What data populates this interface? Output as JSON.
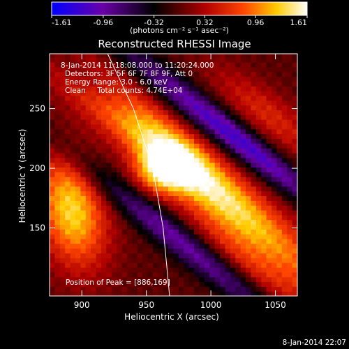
{
  "chart_data": {
    "type": "heatmap",
    "title": "Reconstructed RHESSI Image",
    "xlabel": "Heliocentric X (arcsec)",
    "ylabel": "Heliocentric Y (arcsec)",
    "xlim": [
      875,
      1067
    ],
    "ylim": [
      93,
      296
    ],
    "x_ticks": [
      900,
      950,
      1000,
      1050
    ],
    "y_ticks": [
      150,
      200,
      250
    ],
    "colorbar": {
      "min": -1.61,
      "max": 1.61,
      "ticks": [
        "-1.61",
        "-0.96",
        "-0.32",
        "0.32",
        "0.96",
        "1.61"
      ],
      "unit_label": "(photons cm⁻² s⁻¹ asec⁻²)",
      "colormap": [
        "#0000ff",
        "#6a00a8",
        "#000000",
        "#b00000",
        "#ff4500",
        "#ffcc00",
        "#ffffff"
      ]
    },
    "annotations": [
      "8-Jan-2014 11:18:08.000 to 11:20:24.000",
      "Detectors: 3F 5F 6F 7F 8F 9F, Att 0",
      "Energy Range: 3.0 - 6.0 keV",
      "Clean     Total counts: 4.74E+04"
    ],
    "peak_label": "Position of Peak = [886,169]",
    "peak": [
      886,
      169
    ],
    "limb_curve": [
      [
        920,
        296
      ],
      [
        940,
        250
      ],
      [
        955,
        200
      ],
      [
        963,
        150
      ],
      [
        968,
        93
      ]
    ]
  },
  "footer_date": "8-Jan-2014 22:07"
}
